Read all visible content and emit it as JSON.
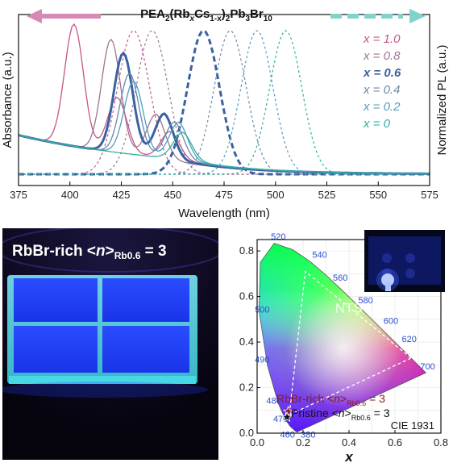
{
  "chart_data": [
    {
      "type": "line",
      "title_parts": [
        "PEA",
        "2",
        "(Rb",
        "x",
        "Cs",
        "1-x",
        ")",
        "2",
        "Pb",
        "3",
        "Br",
        "10"
      ],
      "xlabel": "Wavelength (nm)",
      "ylabel_left": "Absorbance (a.u.)",
      "ylabel_right": "Normalized PL (a.u.)",
      "xlim": [
        375,
        575
      ],
      "xticks": [
        "375",
        "400",
        "425",
        "450",
        "475",
        "500",
        "525",
        "550",
        "575"
      ],
      "legend_position": "top-right",
      "series": [
        {
          "name": "x = 1.0",
          "color": "#c7548a",
          "bold": false,
          "abs_peaks": [
            [
              402,
              1.0
            ],
            [
              423,
              0.45
            ],
            [
              449,
              0.22
            ]
          ],
          "pl_peak": 431
        },
        {
          "name": "x = 0.8",
          "color": "#9c7690",
          "bold": false,
          "abs_peaks": [
            [
              420,
              0.92
            ],
            [
              442,
              0.35
            ]
          ],
          "pl_peak": 440
        },
        {
          "name": "x = 0.6",
          "color": "#3a62a0",
          "bold": true,
          "abs_peaks": [
            [
              426,
              0.82
            ],
            [
              446,
              0.36
            ]
          ],
          "pl_peak": 465
        },
        {
          "name": "x = 0.4",
          "color": "#6a88a8",
          "bold": false,
          "abs_peaks": [
            [
              429,
              0.66
            ],
            [
              451,
              0.3
            ]
          ],
          "pl_peak": 478
        },
        {
          "name": "x = 0.2",
          "color": "#4f9fc0",
          "bold": false,
          "abs_peaks": [
            [
              431,
              0.6
            ],
            [
              453,
              0.3
            ]
          ],
          "pl_peak": 491
        },
        {
          "name": "x = 0",
          "color": "#2fb0a2",
          "bold": false,
          "abs_peaks": [
            [
              455,
              0.22
            ]
          ],
          "pl_peak": 505
        }
      ]
    },
    {
      "type": "scatter",
      "title": "CIE 1931",
      "xlabel": "x",
      "ylabel": "y",
      "xlim": [
        0.0,
        0.8
      ],
      "ylim": [
        0.0,
        0.85
      ],
      "xticks": [
        "0.0",
        "0.2",
        "0.4",
        "0.6",
        "0.8"
      ],
      "yticks": [
        "0.0",
        "0.2",
        "0.4",
        "0.6",
        "0.8"
      ],
      "wavelength_labels": [
        "380",
        "460",
        "470",
        "480",
        "490",
        "500",
        "520",
        "540",
        "560",
        "580",
        "600",
        "620",
        "700"
      ],
      "gamut_label": "NTSC",
      "ntsc_gamut": [
        [
          0.67,
          0.33
        ],
        [
          0.21,
          0.71
        ],
        [
          0.14,
          0.08
        ]
      ],
      "points": [
        {
          "name_parts": [
            "RbBr-rich <",
            "n",
            ">",
            "Rb0.6",
            " = 3"
          ],
          "x": 0.135,
          "y": 0.095,
          "color": "#8b1a1a"
        },
        {
          "name_parts": [
            "Pristine <",
            "n",
            ">",
            "Rb0.6",
            " = 3"
          ],
          "x": 0.13,
          "y": 0.07,
          "color": "#111111"
        }
      ]
    }
  ],
  "photo": {
    "title_parts": [
      "RbBr-rich <",
      "n",
      ">",
      "Rb0.6",
      " = 3"
    ],
    "glow_color": "#1f3dff"
  }
}
